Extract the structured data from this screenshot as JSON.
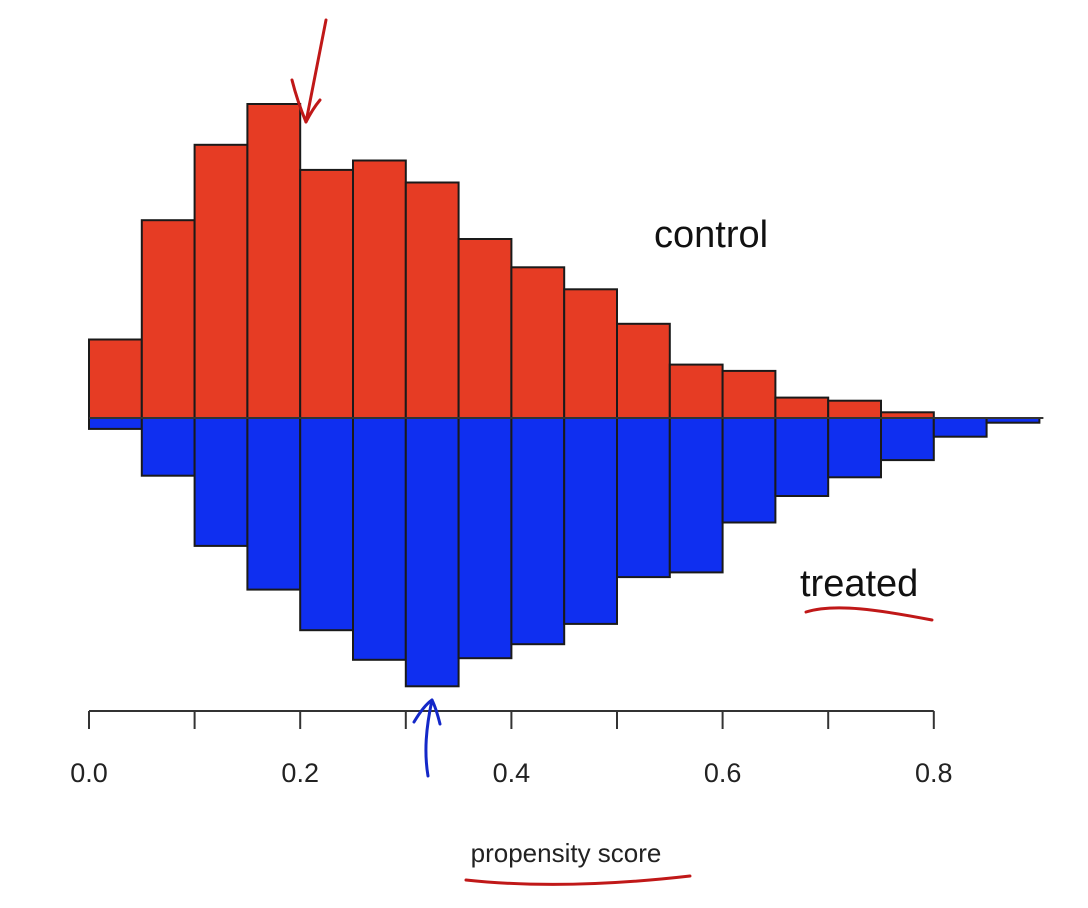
{
  "chart_data": {
    "type": "bar",
    "orientation": "mirrored",
    "xlabel": "propensity score",
    "xlim": [
      0.0,
      0.9
    ],
    "bin_width": 0.05,
    "bin_starts": [
      0.0,
      0.05,
      0.1,
      0.15,
      0.2,
      0.25,
      0.3,
      0.35,
      0.4,
      0.45,
      0.5,
      0.55,
      0.6,
      0.65,
      0.7,
      0.75,
      0.8,
      0.85
    ],
    "x_ticks": [
      {
        "value": 0.0,
        "label": "0.0"
      },
      {
        "value": 0.2,
        "label": "0.2"
      },
      {
        "value": 0.4,
        "label": "0.4"
      },
      {
        "value": 0.6,
        "label": "0.6"
      },
      {
        "value": 0.8,
        "label": "0.8"
      }
    ],
    "series": [
      {
        "name": "control",
        "direction": "up",
        "color": "#e63c24",
        "values": [
          2.5,
          6.3,
          8.7,
          10.0,
          7.9,
          8.2,
          7.5,
          5.7,
          4.8,
          4.1,
          3.0,
          1.7,
          1.5,
          0.65,
          0.55,
          0.18,
          0.0,
          0.0
        ]
      },
      {
        "name": "treated",
        "direction": "down",
        "color": "#0f2ff0",
        "values": [
          0.35,
          1.85,
          4.1,
          5.5,
          6.8,
          7.75,
          8.6,
          7.7,
          7.25,
          6.6,
          5.1,
          4.95,
          3.35,
          2.5,
          1.9,
          1.35,
          0.6,
          0.15
        ]
      }
    ],
    "annotations": [
      {
        "type": "arrow",
        "color": "#c01818",
        "points_to": {
          "series": "control",
          "x": 0.2
        }
      },
      {
        "type": "arrow",
        "color": "#1428c8",
        "points_to": {
          "series": "treated",
          "x": 0.325
        }
      },
      {
        "type": "underline",
        "color": "#c01818",
        "target": "treated"
      },
      {
        "type": "underline",
        "color": "#c01818",
        "target": "propensity score"
      }
    ]
  }
}
